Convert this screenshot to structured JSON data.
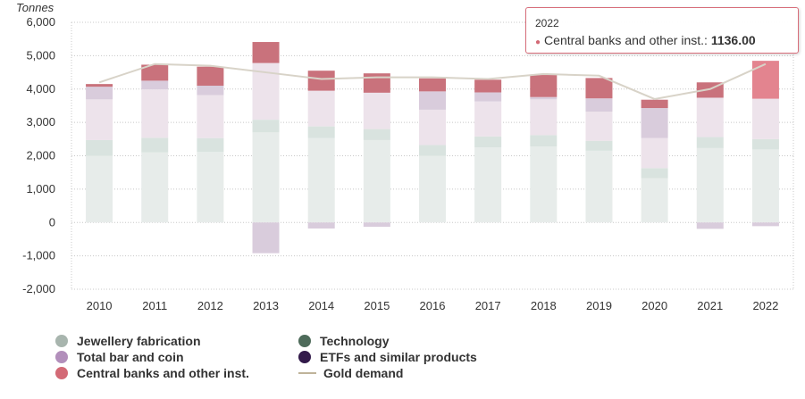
{
  "chart_data": {
    "type": "stacked-bar",
    "ylabel": "Tonnes",
    "ylim": [
      -2000,
      6000
    ],
    "yticks": [
      -2000,
      -1000,
      0,
      1000,
      2000,
      3000,
      4000,
      5000,
      6000
    ],
    "ytick_labels": [
      "-2,000",
      "-1,000",
      "0",
      "1,000",
      "2,000",
      "3,000",
      "4,000",
      "5,000",
      "6,000"
    ],
    "grid": true,
    "categories": [
      "2010",
      "2011",
      "2012",
      "2013",
      "2014",
      "2015",
      "2016",
      "2017",
      "2018",
      "2019",
      "2020",
      "2021",
      "2022"
    ],
    "series": [
      {
        "name": "Jewellery fabrication",
        "key": "jewellery",
        "color": "#e7ecea",
        "values": [
          2000,
          2100,
          2120,
          2700,
          2530,
          2470,
          2000,
          2250,
          2280,
          2150,
          1330,
          2230,
          2190
        ]
      },
      {
        "name": "Technology",
        "key": "technology",
        "color": "#d9e3df",
        "values": [
          470,
          440,
          410,
          380,
          350,
          330,
          320,
          330,
          340,
          300,
          300,
          330,
          310
        ]
      },
      {
        "name": "Total bar and coin",
        "key": "barcoin",
        "color": "#ede3eb",
        "values": [
          1220,
          1450,
          1290,
          1700,
          1070,
          1090,
          1060,
          1050,
          1070,
          870,
          900,
          1180,
          1210
        ]
      },
      {
        "name": "ETFs and similar products",
        "key": "etf",
        "color": "#d9ccdc",
        "values": [
          380,
          260,
          280,
          -920,
          -180,
          -130,
          550,
          270,
          70,
          400,
          900,
          -190,
          -110
        ]
      },
      {
        "name": "Central banks and other inst.",
        "key": "cb",
        "color": "#c9727c",
        "values": [
          80,
          480,
          570,
          630,
          600,
          580,
          390,
          380,
          660,
          610,
          250,
          460,
          1136
        ]
      }
    ],
    "line": {
      "name": "Gold demand",
      "color": "#d8d3c8",
      "values": [
        4200,
        4750,
        4700,
        4500,
        4300,
        4350,
        4350,
        4300,
        4450,
        4400,
        3700,
        4000,
        4750
      ]
    },
    "highlight": {
      "index": 12,
      "series": "cb",
      "color": "#e3848f"
    },
    "legend": [
      {
        "label": "Jewellery fabrication",
        "type": "dot",
        "color": "#a8b5ae"
      },
      {
        "label": "Technology",
        "type": "dot",
        "color": "#4e6b5a"
      },
      {
        "label": "Total bar and coin",
        "type": "dot",
        "color": "#b28fbb"
      },
      {
        "label": "ETFs and similar products",
        "type": "dot",
        "color": "#321a4a"
      },
      {
        "label": "Central banks and other inst.",
        "type": "dot",
        "color": "#d36a76"
      },
      {
        "label": "Gold demand",
        "type": "line",
        "color": "#bfb39a"
      }
    ],
    "tooltip": {
      "year": "2022",
      "series_label": "Central banks and other inst.:",
      "value_text": "1136.00"
    }
  }
}
